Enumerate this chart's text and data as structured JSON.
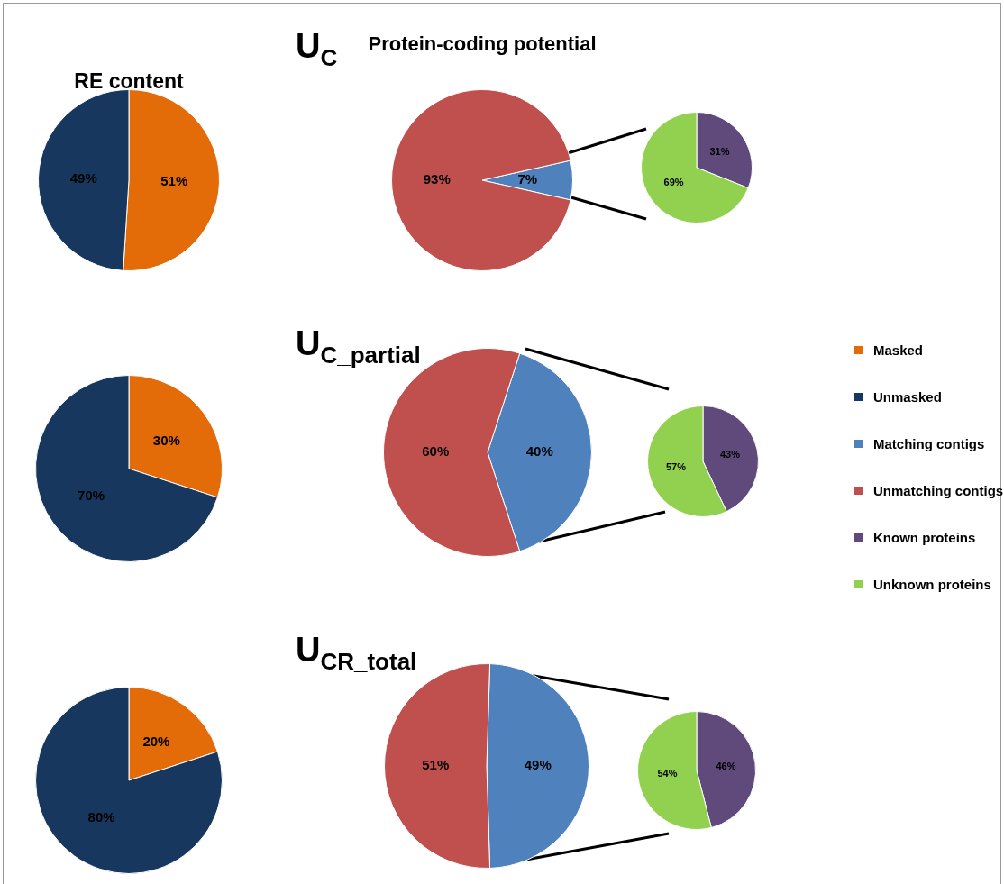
{
  "chart_data": [
    {
      "type": "pie",
      "title": "RE content",
      "categories": [
        "Masked",
        "Unmasked"
      ],
      "values": [
        51,
        49
      ],
      "colors": [
        "#e36c09",
        "#17375e"
      ],
      "value_labels": [
        "51%",
        "49%"
      ],
      "legend": "right"
    },
    {
      "type": "pie",
      "title": "Protein-coding potential",
      "annotations": [
        "U$_{C}$"
      ],
      "categories": [
        "Matching contigs",
        "Unmatching contigs"
      ],
      "values": [
        7,
        93
      ],
      "colors": [
        "#4f81bd",
        "#c0504d"
      ],
      "value_labels": [
        "7%",
        "93%"
      ],
      "legend": "right"
    },
    {
      "type": "pie",
      "categories": [
        "Known proteins",
        "Unknown proteins"
      ],
      "values": [
        31,
        69
      ],
      "colors": [
        "#604a7b",
        "#92d050"
      ],
      "value_labels": [
        "31%",
        "69%"
      ],
      "legend": "right"
    },
    {
      "type": "pie",
      "categories": [
        null,
        null
      ],
      "values": [
        30,
        70
      ],
      "colors": [
        "#e36c09",
        "#17375e"
      ],
      "value_labels": [
        "30%",
        "70%"
      ]
    },
    {
      "type": "pie",
      "annotations": [
        "U$_{C_partial}$"
      ],
      "categories": [
        null,
        null
      ],
      "values": [
        40,
        60
      ],
      "colors": [
        "#4f81bd",
        "#c0504d"
      ],
      "value_labels": [
        "40%",
        "60%"
      ]
    },
    {
      "type": "pie",
      "categories": [
        null,
        null
      ],
      "values": [
        43,
        57
      ],
      "colors": [
        "#604a7b",
        "#92d050"
      ],
      "value_labels": [
        "43%",
        "57%"
      ]
    },
    {
      "type": "pie",
      "categories": [
        null,
        null
      ],
      "values": [
        20,
        80
      ],
      "colors": [
        "#e36c09",
        "#17375e"
      ],
      "value_labels": [
        "20%",
        "80%"
      ]
    },
    {
      "type": "pie",
      "annotations": [
        "U$_{CR_total}$"
      ],
      "categories": [
        null,
        null
      ],
      "values": [
        49,
        51
      ],
      "colors": [
        "#4f81bd",
        "#c0504d"
      ],
      "value_labels": [
        "49%",
        "51%"
      ]
    },
    {
      "type": "pie",
      "categories": [
        null,
        null
      ],
      "values": [
        46,
        54
      ],
      "colors": [
        "#604a7b",
        "#92d050"
      ],
      "value_labels": [
        "46%",
        "54%"
      ]
    }
  ]
}
